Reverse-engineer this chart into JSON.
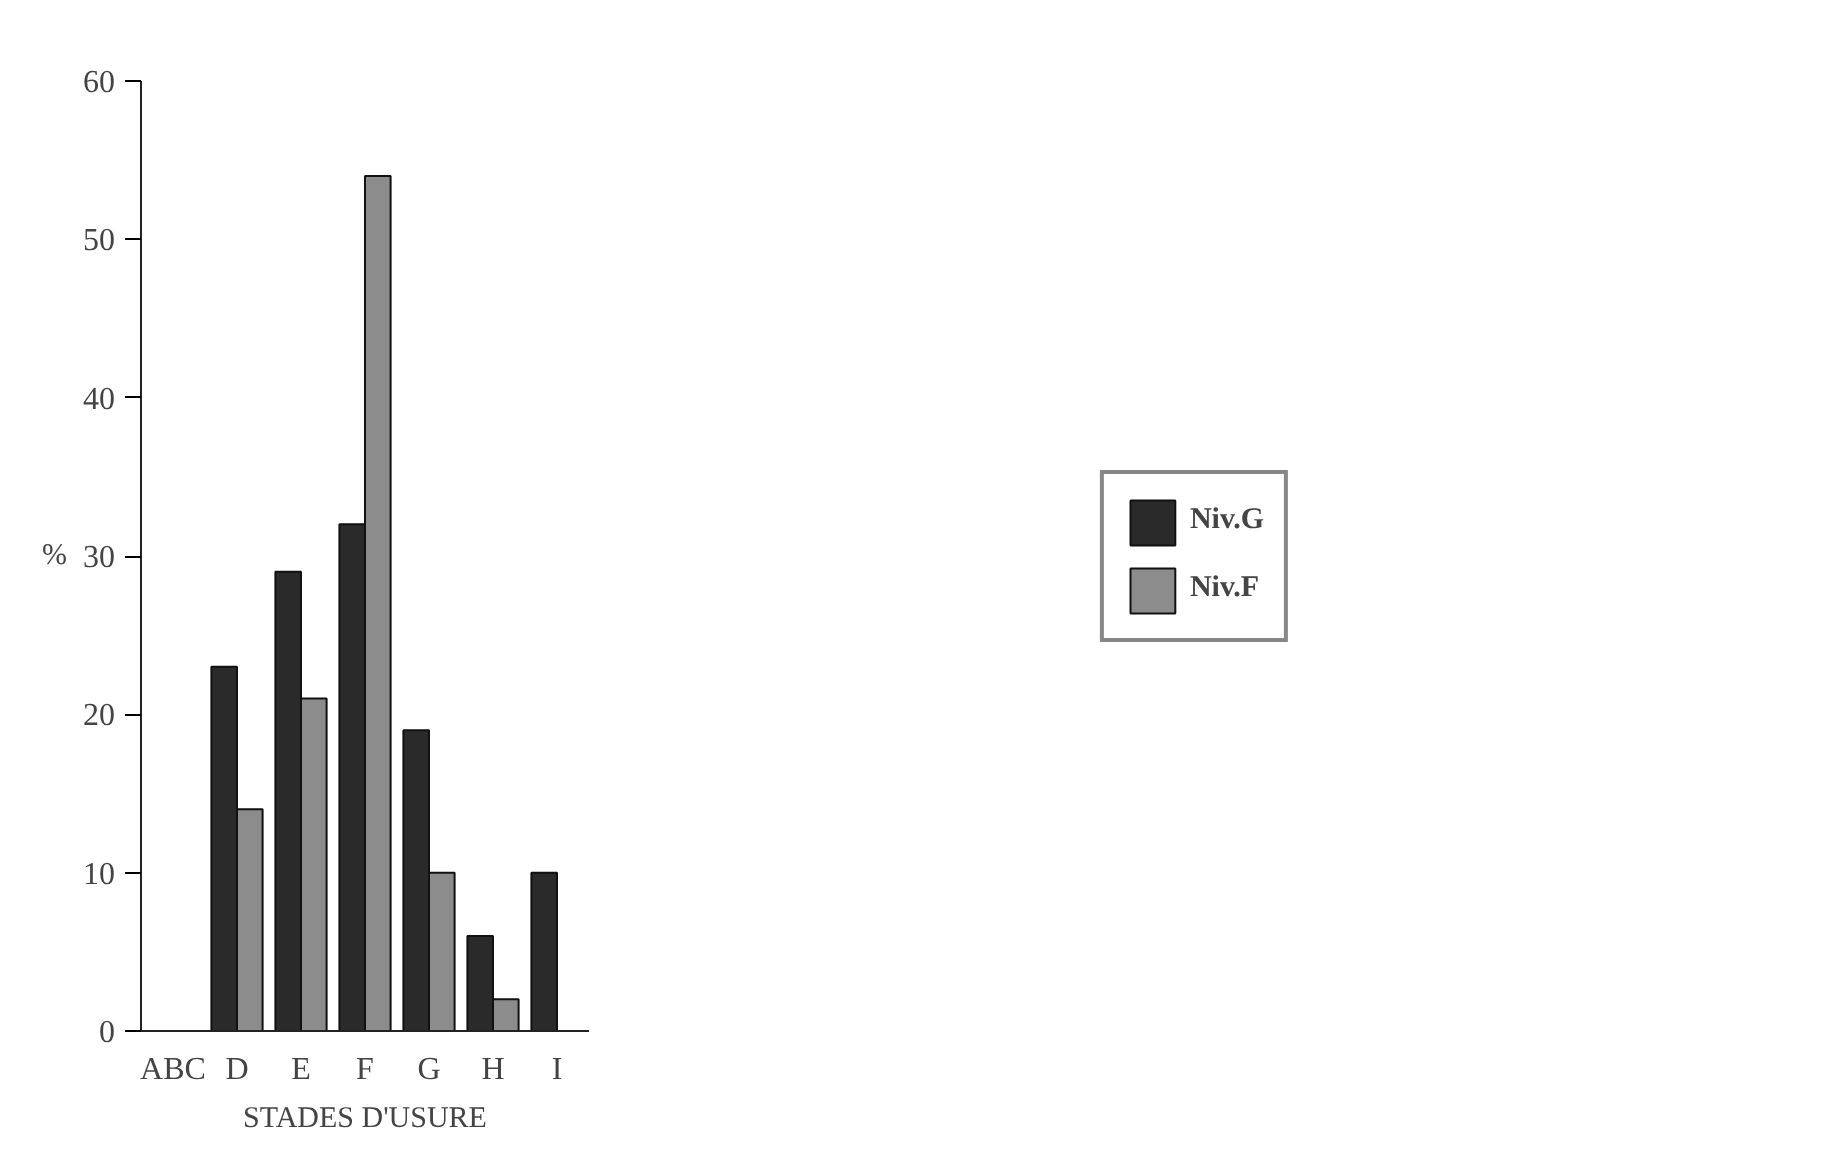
{
  "chart_data": {
    "type": "bar",
    "xlabel": "STADES D'USURE",
    "ylabel": "%",
    "categories": [
      "ABC",
      "D",
      "E",
      "F",
      "G",
      "H",
      "I"
    ],
    "series": [
      {
        "name": "Niv.G",
        "color": "#2a2a2a",
        "values": [
          null,
          23,
          29,
          32,
          19,
          6,
          10
        ]
      },
      {
        "name": "Niv.F",
        "color": "#8c8c8c",
        "values": [
          null,
          14,
          21,
          54,
          10,
          2,
          null
        ]
      }
    ],
    "ylim": [
      0,
      60
    ],
    "yticks": [
      0,
      10,
      20,
      30,
      40,
      50,
      60
    ],
    "grid": false,
    "legend": "right"
  }
}
